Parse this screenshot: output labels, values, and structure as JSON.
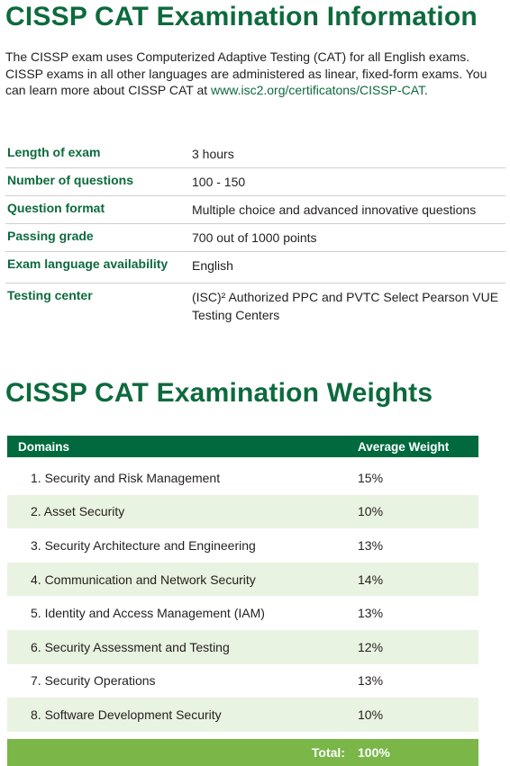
{
  "header": {
    "title": "CISSP CAT Examination Information"
  },
  "intro": {
    "text": "The CISSP exam uses Computerized Adaptive Testing (CAT) for all English exams. CISSP exams in all other languages are administered as linear, fixed-form exams. You can learn more about CISSP CAT at ",
    "link": "www.isc2.org/certificatons/CISSP-CAT",
    "end": "."
  },
  "info": {
    "rows": [
      [
        "Length of exam",
        "3 hours"
      ],
      [
        "Number of questions",
        "100 - 150"
      ],
      [
        "Question format",
        "Multiple choice and advanced innovative questions"
      ],
      [
        "Passing grade",
        "700 out of 1000 points"
      ],
      [
        "Exam language availability",
        "English"
      ],
      [
        "Testing center",
        "(ISC)² Authorized PPC and PVTC Select Pearson VUE Testing Centers"
      ]
    ]
  },
  "weights": {
    "title": "CISSP CAT Examination Weights",
    "columns": [
      "Domains",
      "Average Weight"
    ],
    "rows": [
      [
        "1. Security and Risk Management",
        "15%"
      ],
      [
        "2. Asset Security",
        "10%"
      ],
      [
        "3. Security Architecture and Engineering",
        "13%"
      ],
      [
        "4. Communication and Network Security",
        "14%"
      ],
      [
        "5. Identity and Access Management (IAM)",
        "13%"
      ],
      [
        "6. Security Assessment and Testing",
        "12%"
      ],
      [
        "7. Security Operations",
        "13%"
      ],
      [
        "8. Software Development Security",
        "10%"
      ]
    ],
    "total": [
      "Total:",
      "100%"
    ]
  }
}
